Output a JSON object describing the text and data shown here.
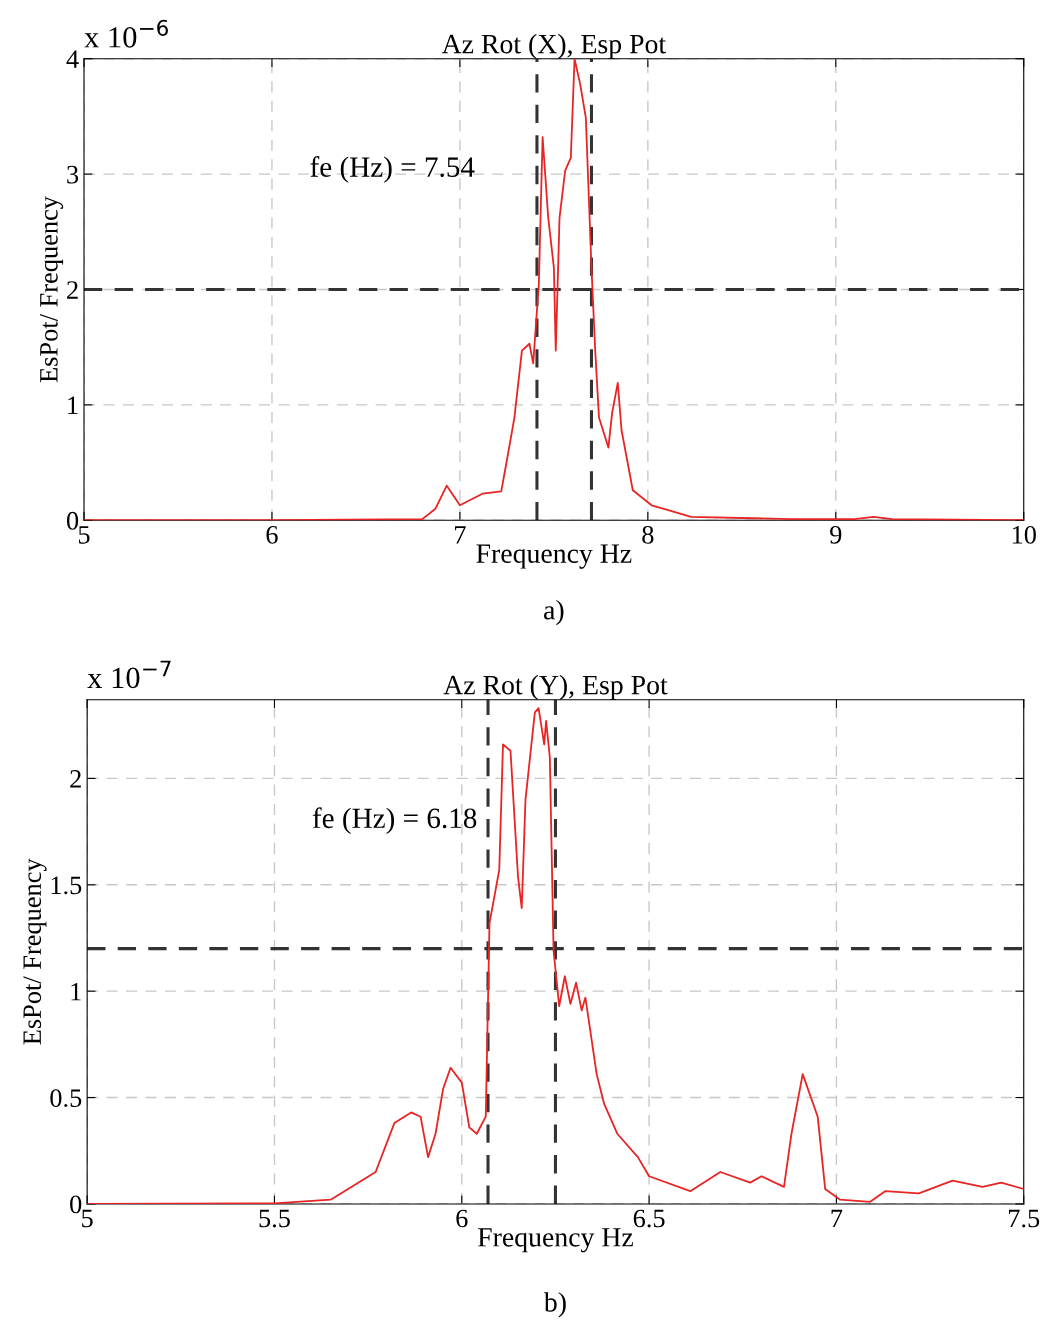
{
  "chart_data": [
    {
      "type": "line",
      "title": "Az Rot (X), Esp Pot",
      "xlabel": "Frequency Hz",
      "ylabel": "EsPot/ Frequency",
      "annotations": [
        "x 10$^{−6}$",
        "fe (Hz) = 7.54",
        "a)"
      ],
      "x": [
        5,
        6,
        6.8,
        6.87,
        6.93,
        7.0,
        7.12,
        7.22,
        7.25,
        7.29,
        7.33,
        7.37,
        7.39,
        7.42,
        7.44,
        7.47,
        7.5,
        7.51,
        7.53,
        7.56,
        7.59,
        7.61,
        7.64,
        7.67,
        7.7,
        7.72,
        7.74,
        7.79,
        7.81,
        7.84,
        7.86,
        7.92,
        8.02,
        8.23,
        8.76,
        9.1,
        9.2,
        9.3,
        10
      ],
      "series": [
        {
          "color": "#e82424",
          "values": [
            0,
            0,
            0.01,
            0.1,
            0.3,
            0.13,
            0.23,
            0.25,
            0.52,
            0.89,
            1.47,
            1.53,
            1.36,
            2.05,
            3.32,
            2.62,
            2.19,
            1.47,
            2.62,
            3.03,
            3.14,
            4.0,
            3.78,
            3.49,
            2.19,
            1.47,
            0.89,
            0.63,
            0.93,
            1.19,
            0.78,
            0.26,
            0.13,
            0.03,
            0.01,
            0.01,
            0.03,
            0.01,
            0
          ]
        }
      ],
      "xlim": [
        5,
        10
      ],
      "ylim": [
        0,
        4
      ],
      "xticks": [
        5,
        6,
        7,
        8,
        9,
        10
      ],
      "yticks": [
        0,
        1,
        2,
        3,
        4
      ],
      "grid": true,
      "line_style": "solid",
      "marker": "none",
      "ref_lines": [
        {
          "axis": "x",
          "value": 7.41,
          "label": null,
          "color": "#333333",
          "line_style": "dashed"
        },
        {
          "axis": "x",
          "value": 7.7,
          "label": null,
          "color": "#333333",
          "line_style": "dashed"
        },
        {
          "axis": "y",
          "value": 2,
          "label": null,
          "color": "#333333",
          "line_style": "dashed"
        }
      ]
    },
    {
      "type": "line",
      "title": "Az Rot (Y), Esp Pot",
      "xlabel": "Frequency Hz",
      "ylabel": "EsPot/ Frequency",
      "annotations": [
        "x 10$^{−7}$",
        "fe (Hz) = 6.18",
        "b)"
      ],
      "x": [
        5,
        5.5,
        5.65,
        5.77,
        5.82,
        5.865,
        5.89,
        5.91,
        5.93,
        5.95,
        5.97,
        6.0,
        6.02,
        6.04,
        6.064,
        6.074,
        6.1,
        6.11,
        6.13,
        6.15,
        6.16,
        6.17,
        6.195,
        6.205,
        6.22,
        6.225,
        6.235,
        6.245,
        6.26,
        6.275,
        6.29,
        6.305,
        6.32,
        6.33,
        6.36,
        6.38,
        6.415,
        6.47,
        6.5,
        6.61,
        6.69,
        6.77,
        6.8,
        6.86,
        6.88,
        6.91,
        6.95,
        6.97,
        7.01,
        7.09,
        7.13,
        7.22,
        7.31,
        7.39,
        7.44,
        7.5
      ],
      "series": [
        {
          "color": "#e82424",
          "values": [
            0,
            0.003,
            0.02,
            0.15,
            0.38,
            0.43,
            0.41,
            0.22,
            0.33,
            0.54,
            0.64,
            0.57,
            0.36,
            0.33,
            0.41,
            1.32,
            1.57,
            2.16,
            2.13,
            1.54,
            1.39,
            1.9,
            2.31,
            2.33,
            2.16,
            2.27,
            2.1,
            1.19,
            0.93,
            1.07,
            0.94,
            1.04,
            0.91,
            0.97,
            0.61,
            0.47,
            0.33,
            0.22,
            0.13,
            0.06,
            0.15,
            0.1,
            0.13,
            0.08,
            0.33,
            0.61,
            0.41,
            0.07,
            0.02,
            0.01,
            0.06,
            0.05,
            0.11,
            0.08,
            0.1,
            0.07
          ]
        }
      ],
      "xlim": [
        5,
        7.5
      ],
      "ylim": [
        0,
        2.37
      ],
      "xticks": [
        5,
        5.5,
        6,
        6.5,
        7,
        7.5
      ],
      "yticks": [
        0,
        0.5,
        1,
        1.5,
        2
      ],
      "grid": true,
      "line_style": "solid",
      "marker": "none",
      "ref_lines": [
        {
          "axis": "x",
          "value": 6.07,
          "label": null,
          "color": "#333333",
          "line_style": "dashed"
        },
        {
          "axis": "x",
          "value": 6.25,
          "label": null,
          "color": "#333333",
          "line_style": "dashed"
        },
        {
          "axis": "y",
          "value": 1.2,
          "label": null,
          "color": "#333333",
          "line_style": "dashed"
        }
      ]
    }
  ]
}
